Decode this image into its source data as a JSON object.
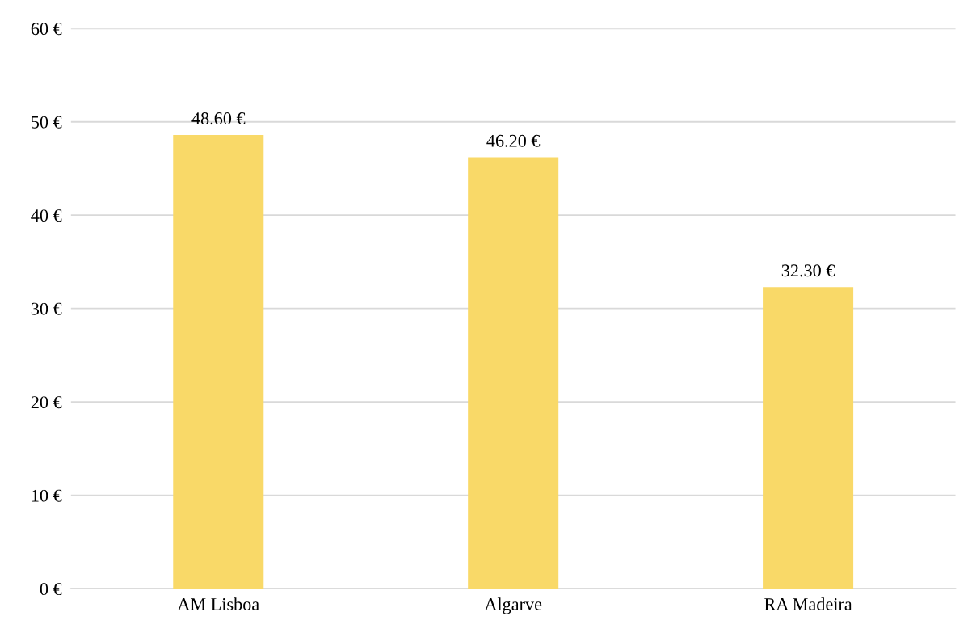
{
  "chart_data": {
    "type": "bar",
    "categories": [
      "AM Lisboa",
      "Algarve",
      "RA Madeira"
    ],
    "values": [
      48.6,
      46.2,
      32.3
    ],
    "color": "#f9d968",
    "value_labels": [
      "48.60 €",
      "46.20 €",
      "32.30 €"
    ],
    "ylim": [
      0,
      60
    ],
    "yticks": [
      {
        "value": 0,
        "label": "0 €"
      },
      {
        "value": 10,
        "label": "10 €"
      },
      {
        "value": 20,
        "label": "20 €"
      },
      {
        "value": 30,
        "label": "30 €"
      },
      {
        "value": 40,
        "label": "40 €"
      },
      {
        "value": 50,
        "label": "50 €"
      },
      {
        "value": 60,
        "label": "60 €"
      }
    ],
    "grid": "y",
    "legend": false
  }
}
